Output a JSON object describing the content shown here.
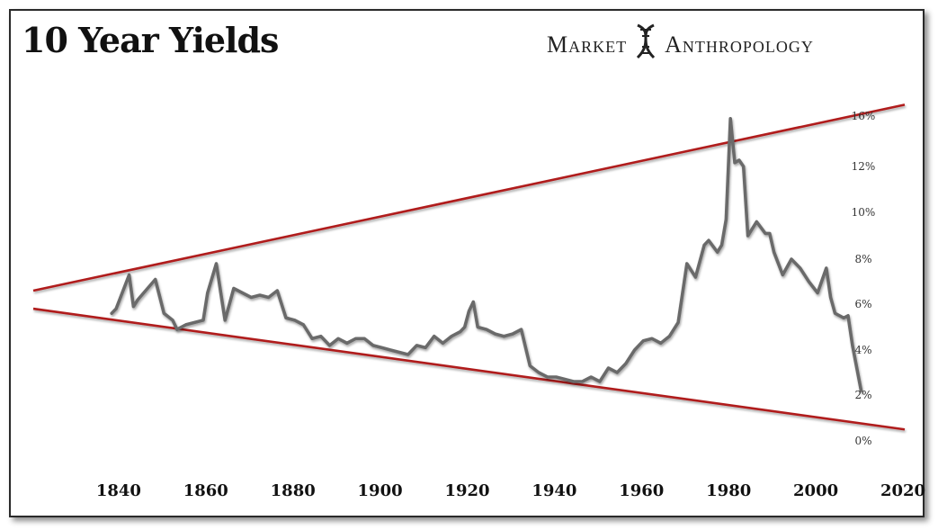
{
  "header": {
    "title": "10 Year Yields",
    "brand_left": "Market",
    "brand_right": "Anthropology",
    "brand_icon": "dna-helix-icon"
  },
  "chart_data": {
    "type": "line",
    "title": "10 Year Yields",
    "xlabel": "",
    "ylabel": "",
    "xlim": [
      1820,
      2020
    ],
    "ylim": [
      0,
      16
    ],
    "x_ticks": [
      1840,
      1860,
      1880,
      1900,
      1920,
      1940,
      1960,
      1980,
      2000,
      2020
    ],
    "y_ticks": [
      0,
      2,
      4,
      6,
      8,
      10,
      12,
      16
    ],
    "y_tick_labels": [
      "0%",
      "2%",
      "4%",
      "6%",
      "8%",
      "10%",
      "12%",
      "16%"
    ],
    "grid": false,
    "colors": {
      "line": "#6b6b6b",
      "trend": "#b01e1e"
    },
    "series": [
      {
        "x": [
          1838,
          1839,
          1842,
          1843,
          1844,
          1848,
          1850,
          1852,
          1853,
          1855,
          1857,
          1859,
          1860,
          1862,
          1864,
          1866,
          1868,
          1870,
          1872,
          1874,
          1876,
          1878,
          1880,
          1882,
          1884,
          1886,
          1888,
          1890,
          1892,
          1894,
          1896,
          1898,
          1900,
          1902,
          1904,
          1906,
          1908,
          1910,
          1912,
          1914,
          1916,
          1918,
          1919,
          1920,
          1921,
          1922,
          1924,
          1926,
          1928,
          1930,
          1932,
          1934,
          1936,
          1938,
          1940,
          1942,
          1944,
          1946,
          1948,
          1950,
          1952,
          1954,
          1956,
          1958,
          1960,
          1962,
          1964,
          1966,
          1968,
          1970,
          1972,
          1974,
          1975,
          1977,
          1978,
          1979,
          1980,
          1981,
          1982,
          1983,
          1984,
          1986,
          1988,
          1989,
          1990,
          1992,
          1994,
          1996,
          1998,
          2000,
          2002,
          2003,
          2004,
          2006,
          2007,
          2008,
          2010
        ],
        "y": [
          5.6,
          5.8,
          7.3,
          5.9,
          6.2,
          7.1,
          5.6,
          5.3,
          4.9,
          5.1,
          5.2,
          5.3,
          6.5,
          7.8,
          5.3,
          6.7,
          6.5,
          6.3,
          6.4,
          6.3,
          6.6,
          5.4,
          5.3,
          5.1,
          4.5,
          4.6,
          4.2,
          4.5,
          4.3,
          4.5,
          4.5,
          4.2,
          4.1,
          4.0,
          3.9,
          3.8,
          4.2,
          4.1,
          4.6,
          4.3,
          4.6,
          4.8,
          5.0,
          5.7,
          6.1,
          5.0,
          4.9,
          4.7,
          4.6,
          4.7,
          4.9,
          3.3,
          3.0,
          2.8,
          2.8,
          2.7,
          2.6,
          2.6,
          2.8,
          2.6,
          3.2,
          3.0,
          3.4,
          4.0,
          4.4,
          4.5,
          4.3,
          4.6,
          5.2,
          7.8,
          7.2,
          8.6,
          8.8,
          8.3,
          8.6,
          9.7,
          15.8,
          12.3,
          12.5,
          12.0,
          9.0,
          9.6,
          9.1,
          9.1,
          8.3,
          7.3,
          8.0,
          7.6,
          7.0,
          6.5,
          7.6,
          6.3,
          5.6,
          5.4,
          5.5,
          4.2,
          2.2
        ]
      }
    ],
    "trend_lines": [
      {
        "name": "upper",
        "x": [
          1820,
          2020
        ],
        "y": [
          6.6,
          16.9
        ]
      },
      {
        "name": "lower",
        "x": [
          1820,
          2020
        ],
        "y": [
          5.8,
          0.5
        ]
      }
    ]
  }
}
